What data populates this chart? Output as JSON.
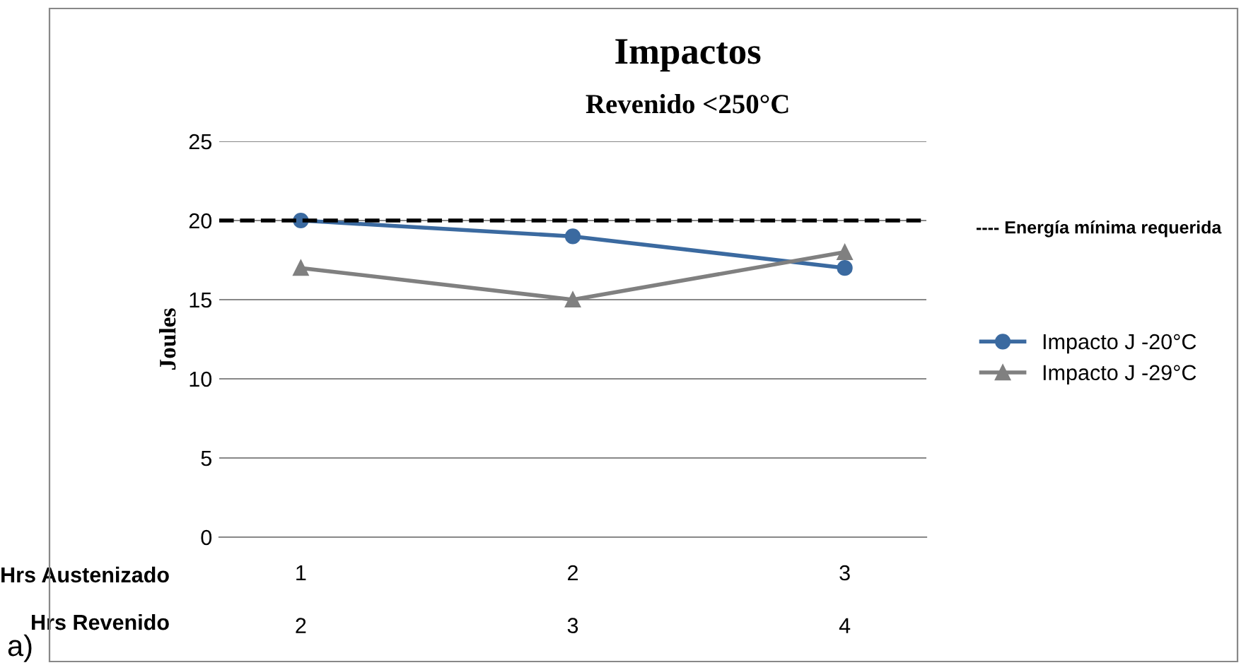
{
  "chart_data": {
    "type": "line",
    "title": "Impactos",
    "subtitle": "Revenido <250°C",
    "ylabel": "Joules",
    "categories": [
      "1",
      "2",
      "3"
    ],
    "series": [
      {
        "name": "Impacto J -20°C",
        "color": "#3b6aa0",
        "values": [
          20,
          19,
          17
        ],
        "marker": "circle"
      },
      {
        "name": "Impacto J -29°C",
        "color": "#808080",
        "values": [
          17,
          15,
          18
        ],
        "marker": "triangle"
      }
    ],
    "ylim": [
      0,
      25
    ],
    "yticks": [
      0,
      5,
      10,
      15,
      20,
      25
    ],
    "grid": "y",
    "legend": "right",
    "ref_lines": [
      {
        "axis": "y",
        "value": 20,
        "label": "---- Energía mínima requerida",
        "color": "#000000",
        "line_style": "dashed"
      }
    ],
    "annotations": [
      "Hrs Austenizado",
      "Hrs Revenido",
      "2",
      "3",
      "4",
      "a)"
    ]
  }
}
